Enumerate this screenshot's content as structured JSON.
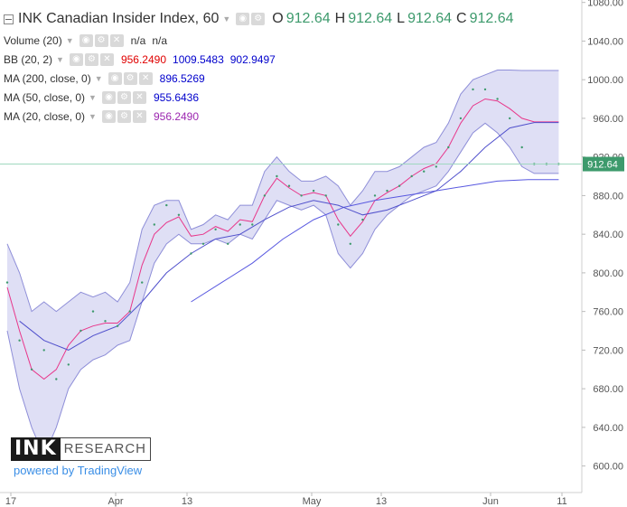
{
  "legend": {
    "title": "INK Canadian Insider Index, 60",
    "ohlc": [
      {
        "k": "O",
        "v": "912.64"
      },
      {
        "k": "H",
        "v": "912.64"
      },
      {
        "k": "L",
        "v": "912.64"
      },
      {
        "k": "C",
        "v": "912.64"
      }
    ],
    "volume": {
      "label": "Volume (20)",
      "v1": "n/a",
      "v2": "n/a"
    },
    "bb": {
      "label": "BB (20, 2)",
      "basis": "956.2490",
      "upper": "1009.5483",
      "lower": "902.9497"
    },
    "ma200": {
      "label": "MA (200, close, 0)",
      "value": "896.5269"
    },
    "ma50": {
      "label": "MA (50, close, 0)",
      "value": "955.6436"
    },
    "ma20": {
      "label": "MA (20, close, 0)",
      "value": "956.2490"
    }
  },
  "logo": {
    "ink": "INK",
    "research": "RESEARCH",
    "powered": "powered by TradingView"
  },
  "colors": {
    "price": "#3d9a6c",
    "bb_fill": "#c9c9ee",
    "bb_border": "#8e8ed8",
    "basis": "#e8368a",
    "ma200": "#5858e0",
    "ma50": "#5050cc",
    "ma20": "#9c27b0",
    "bb_basis_text": "#e00000",
    "bb_upper_text": "#0000cc",
    "bb_lower_text": "#0000cc",
    "ma200_text": "#0000cc",
    "ma50_text": "#0000cc",
    "ma20_text": "#9c27b0",
    "last_price_tag": "#3d9a6c",
    "axis_text": "#555555"
  },
  "chart_data": {
    "type": "line",
    "x_tick_labels": [
      "17",
      "Apr",
      "13",
      "May",
      "13",
      "Jun",
      "11"
    ],
    "y_ticks": [
      600,
      640,
      680,
      720,
      760,
      800,
      840,
      880,
      920,
      960,
      1000,
      1040,
      1080
    ],
    "ylim": [
      580,
      1090
    ],
    "last_price": 912.64,
    "last_price_label": "912.64",
    "grid": false,
    "series": [
      {
        "name": "Price",
        "x": [
          0,
          2,
          4,
          6,
          8,
          10,
          12,
          14,
          16,
          18,
          20,
          22,
          24,
          26,
          28,
          30,
          32,
          34,
          36,
          38,
          40,
          42,
          44,
          46,
          48,
          50,
          52,
          54,
          56,
          58,
          60,
          62,
          64,
          66,
          68,
          70,
          72,
          74,
          76,
          78,
          80,
          82,
          84,
          86,
          88,
          90
        ],
        "values": [
          790,
          730,
          700,
          720,
          690,
          705,
          740,
          760,
          750,
          745,
          760,
          790,
          850,
          870,
          860,
          820,
          830,
          845,
          830,
          850,
          850,
          880,
          900,
          890,
          880,
          885,
          880,
          850,
          830,
          855,
          880,
          885,
          890,
          900,
          905,
          910,
          930,
          960,
          990,
          990,
          980,
          960,
          930,
          912.64,
          912.64,
          912.64
        ]
      },
      {
        "name": "BB upper",
        "x": [
          0,
          2,
          4,
          6,
          8,
          10,
          12,
          14,
          16,
          18,
          20,
          22,
          24,
          26,
          28,
          30,
          32,
          34,
          36,
          38,
          40,
          42,
          44,
          46,
          48,
          50,
          52,
          54,
          56,
          58,
          60,
          62,
          64,
          66,
          68,
          70,
          72,
          74,
          76,
          78,
          80,
          82,
          84,
          86,
          88,
          90
        ],
        "values": [
          830,
          800,
          760,
          770,
          760,
          770,
          780,
          775,
          780,
          770,
          790,
          845,
          870,
          875,
          875,
          845,
          850,
          860,
          855,
          870,
          870,
          905,
          920,
          905,
          895,
          895,
          900,
          890,
          870,
          885,
          905,
          905,
          910,
          920,
          930,
          935,
          955,
          985,
          1000,
          1005,
          1010,
          1010,
          1009.55,
          1009.55,
          1009.55,
          1009.55
        ]
      },
      {
        "name": "BB lower",
        "x": [
          0,
          2,
          4,
          6,
          8,
          10,
          12,
          14,
          16,
          18,
          20,
          22,
          24,
          26,
          28,
          30,
          32,
          34,
          36,
          38,
          40,
          42,
          44,
          46,
          48,
          50,
          52,
          54,
          56,
          58,
          60,
          62,
          64,
          66,
          68,
          70,
          72,
          74,
          76,
          78,
          80,
          82,
          84,
          86,
          88,
          90
        ],
        "values": [
          740,
          680,
          640,
          610,
          640,
          680,
          700,
          710,
          715,
          725,
          730,
          770,
          810,
          830,
          840,
          830,
          830,
          835,
          830,
          840,
          835,
          855,
          875,
          870,
          865,
          870,
          860,
          820,
          805,
          820,
          845,
          860,
          870,
          880,
          885,
          890,
          905,
          925,
          945,
          955,
          945,
          930,
          910,
          902.95,
          902.95,
          902.95
        ]
      },
      {
        "name": "BB basis",
        "x": [
          0,
          2,
          4,
          6,
          8,
          10,
          12,
          14,
          16,
          18,
          20,
          22,
          24,
          26,
          28,
          30,
          32,
          34,
          36,
          38,
          40,
          42,
          44,
          46,
          48,
          50,
          52,
          54,
          56,
          58,
          60,
          62,
          64,
          66,
          68,
          70,
          72,
          74,
          76,
          78,
          80,
          82,
          84,
          86,
          88,
          90
        ],
        "values": [
          785,
          740,
          700,
          690,
          700,
          725,
          740,
          745,
          748,
          748,
          760,
          808,
          840,
          852,
          858,
          838,
          840,
          848,
          843,
          855,
          853,
          880,
          898,
          888,
          880,
          883,
          880,
          855,
          838,
          853,
          875,
          883,
          890,
          900,
          908,
          913,
          930,
          955,
          973,
          980,
          978,
          970,
          960,
          956.25,
          956.25,
          956.25
        ]
      },
      {
        "name": "MA 200",
        "x": [
          30,
          35,
          40,
          45,
          50,
          55,
          60,
          65,
          70,
          75,
          80,
          85,
          90
        ],
        "values": [
          770,
          790,
          810,
          835,
          855,
          868,
          875,
          880,
          885,
          890,
          895,
          896.53,
          896.53
        ]
      },
      {
        "name": "MA 50",
        "x": [
          2,
          6,
          10,
          14,
          18,
          22,
          26,
          30,
          34,
          38,
          42,
          46,
          50,
          54,
          58,
          62,
          66,
          70,
          74,
          78,
          82,
          86,
          90
        ],
        "values": [
          750,
          730,
          720,
          735,
          745,
          770,
          800,
          820,
          835,
          840,
          855,
          868,
          875,
          870,
          860,
          865,
          875,
          885,
          905,
          930,
          950,
          955.64,
          955.64
        ]
      }
    ]
  }
}
